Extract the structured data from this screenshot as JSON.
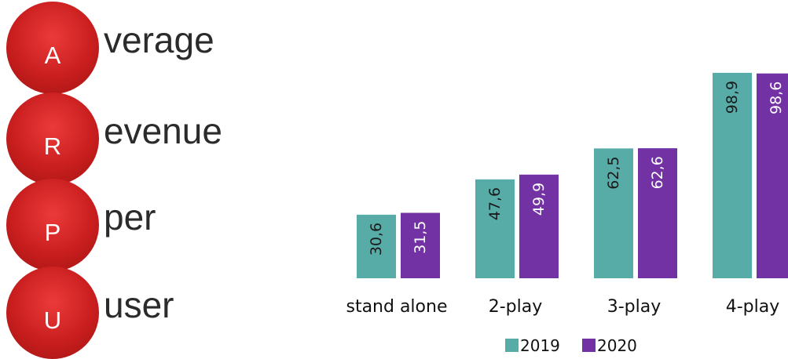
{
  "acronym": {
    "items": [
      {
        "letter": "A",
        "word": "verage"
      },
      {
        "letter": "R",
        "word": "evenue"
      },
      {
        "letter": "P",
        "word": "per"
      },
      {
        "letter": "U",
        "word": "user"
      }
    ]
  },
  "chart_data": {
    "type": "bar",
    "categories": [
      "stand alone",
      "2-play",
      "3-play",
      "4-play"
    ],
    "series": [
      {
        "name": "2019",
        "values": [
          30.6,
          47.6,
          62.5,
          98.9
        ],
        "color": "#57aca8"
      },
      {
        "name": "2020",
        "values": [
          31.5,
          49.9,
          62.6,
          98.6
        ],
        "color": "#7332a4"
      }
    ],
    "data_labels": [
      [
        "30,6",
        "47,6",
        "62,5",
        "98,9"
      ],
      [
        "31,5",
        "49,9",
        "62,6",
        "98,6"
      ]
    ],
    "label_color": [
      "#1a1a1a",
      "#ffffff"
    ],
    "legend": {
      "placement": "bottom"
    },
    "axes_visible": false,
    "grid": false
  }
}
